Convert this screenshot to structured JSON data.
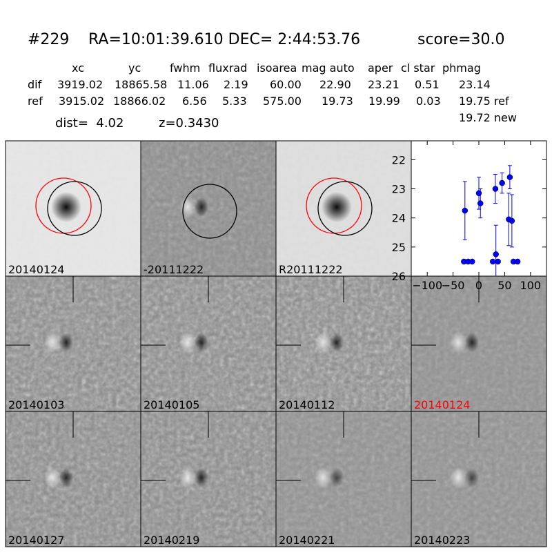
{
  "header": {
    "id": "#229",
    "coords": "RA=10:01:39.610 DEC= 2:44:53.76",
    "score": "score=30.0"
  },
  "table": {
    "columns": [
      "xc",
      "yc",
      "fwhm",
      "fluxrad",
      "isoarea",
      "mag auto",
      "aper",
      "cl star",
      "phmag"
    ],
    "rows": [
      [
        "dif",
        "3919.02",
        "18865.58",
        "11.06",
        "2.19",
        "60.00",
        "22.90",
        "23.21",
        "0.51",
        "23.14"
      ],
      [
        "ref",
        "3915.02",
        "18866.02",
        "6.56",
        "5.33",
        "575.00",
        "19.73",
        "19.99",
        "0.03",
        "19.75 ref"
      ]
    ],
    "extra": "19.72 new"
  },
  "info": {
    "dist": "dist=  4.02",
    "z": "z=0.3430"
  },
  "stamps": [
    {
      "label": "20140124",
      "label_color": "#000000"
    },
    {
      "label": "-20111222",
      "label_color": "#000000"
    },
    {
      "label": "R20111222",
      "label_color": "#000000"
    },
    {
      "label": "20140103",
      "label_color": "#000000"
    },
    {
      "label": "20140105",
      "label_color": "#000000"
    },
    {
      "label": "20140112",
      "label_color": "#000000"
    },
    {
      "label": "20140124",
      "label_color": "#ff0000"
    },
    {
      "label": "20140127",
      "label_color": "#000000"
    },
    {
      "label": "20140219",
      "label_color": "#000000"
    },
    {
      "label": "20140221",
      "label_color": "#000000"
    },
    {
      "label": "20140223",
      "label_color": "#000000"
    }
  ],
  "chart_data": {
    "type": "errorbar",
    "xlim": [
      -131,
      131
    ],
    "ylim": [
      21.35,
      26
    ],
    "y_inverted": true,
    "xticks": [
      {
        "value": -100,
        "label": "−100"
      },
      {
        "value": -50,
        "label": "−50"
      },
      0,
      50,
      100
    ],
    "yticks": [
      22,
      23,
      24,
      25,
      26
    ],
    "series": [
      {
        "color": "#0000ff",
        "x": [
          -29,
          -21,
          -13,
          -27,
          0,
          3,
          27,
          32,
          33,
          37,
          45,
          58,
          60,
          64,
          67,
          75
        ],
        "values": [
          25.5,
          25.5,
          25.5,
          23.75,
          23.15,
          23.5,
          25.5,
          23.0,
          25.25,
          25.5,
          22.8,
          24.05,
          22.6,
          24.1,
          25.5,
          25.5
        ],
        "errors": [
          null,
          null,
          null,
          1.0,
          0.55,
          0.5,
          null,
          0.5,
          1.0,
          null,
          0.35,
          0.9,
          0.4,
          0.9,
          null,
          null
        ]
      }
    ]
  }
}
